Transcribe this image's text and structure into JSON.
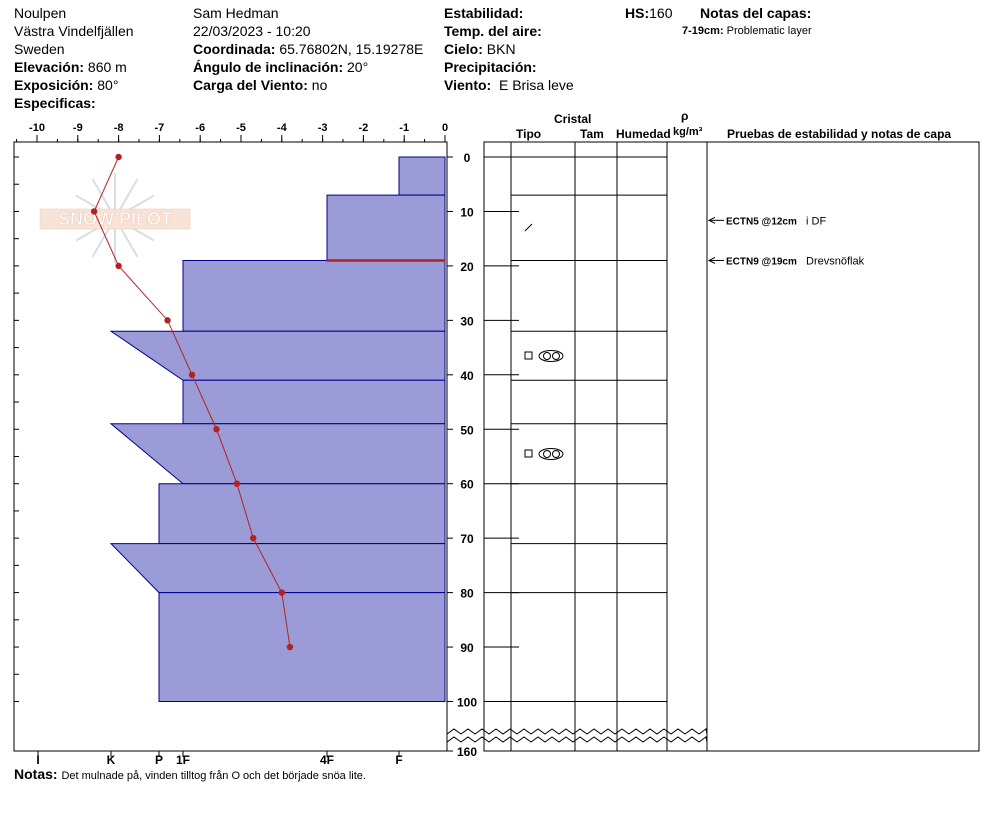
{
  "header": {
    "location": "Noulpen",
    "region": "Västra Vindelfjällen",
    "country": "Sweden",
    "elevation_label": "Elevación:",
    "elevation_value": "860 m",
    "exposure_label": "Exposición:",
    "exposure_value": "80°",
    "specifics_label": "Especificas:",
    "observer": "Sam Hedman",
    "datetime": "22/03/2023 - 10:20",
    "coord_label": "Coordinada:",
    "coord_value": "65.76802N, 15.19278E",
    "slope_label": "Ángulo de inclinación:",
    "slope_value": "20°",
    "wind_load_label": "Carga del Viento:",
    "wind_load_value": "no",
    "stability_label": "Estabilidad:",
    "air_temp_label": "Temp. del aire:",
    "sky_label": "Cielo:",
    "sky_value": "BKN",
    "precip_label": "Precipitación:",
    "wind_label": "Viento:",
    "wind_value": "E  Brisa leve",
    "hs_label": "HS:",
    "hs_value": "160",
    "layer_notes_label": "Notas del capas:",
    "layer_note_range": "7-19cm:",
    "layer_note_text": "Problematic layer"
  },
  "table": {
    "crystal": "Cristal",
    "type": "Tipo",
    "size": "Tam",
    "moisture": "Humedad",
    "rho": "ρ",
    "density_unit": "kg/m³",
    "tests_header": "Pruebas de estabilidad y notas de capa"
  },
  "notes": {
    "label": "Notas:",
    "text": "Det mulnade på, vinden tilltog från O och det började snöa lite."
  },
  "logo_text": "SNOW PILOT",
  "colors": {
    "layer_fill": "#9b9bd8",
    "layer_stroke": "#00008b",
    "temp_line": "#b22222",
    "weak_layer": "#b22222"
  },
  "chart_data": {
    "type": "line",
    "x_axis_top": {
      "label_ticks": [
        "-10",
        "-9",
        "-8",
        "-7",
        "-6",
        "-5",
        "-4",
        "-3",
        "-2",
        "-1",
        "0"
      ],
      "range": [
        -10.5,
        0
      ]
    },
    "hardness_ticks": [
      "I",
      "K",
      "P",
      "1F",
      "4F",
      "F"
    ],
    "depth_ticks": [
      "0",
      "10",
      "20",
      "30",
      "40",
      "50",
      "60",
      "70",
      "80",
      "90",
      "100",
      "160"
    ],
    "temperature_profile": {
      "depth_cm": [
        0,
        10,
        20,
        30,
        40,
        50,
        60,
        70,
        80,
        90
      ],
      "temp_c": [
        -8,
        -8.6,
        -8,
        -6.8,
        -6.2,
        -5.6,
        -5.1,
        -4.7,
        -4.0,
        -3.8
      ]
    },
    "layers": [
      {
        "top": 0,
        "bottom": 7,
        "hardness_top": "F",
        "hardness_bottom": "F"
      },
      {
        "top": 7,
        "bottom": 19,
        "hardness_top": "4F",
        "hardness_bottom": "4F"
      },
      {
        "top": 19,
        "bottom": 32,
        "hardness_top": "1F",
        "hardness_bottom": "1F"
      },
      {
        "top": 32,
        "bottom": 41,
        "hardness_top": "K",
        "hardness_bottom": "1F"
      },
      {
        "top": 41,
        "bottom": 49,
        "hardness_top": "1F",
        "hardness_bottom": "1F"
      },
      {
        "top": 49,
        "bottom": 60,
        "hardness_top": "K",
        "hardness_bottom": "1F"
      },
      {
        "top": 60,
        "bottom": 71,
        "hardness_top": "P",
        "hardness_bottom": "P"
      },
      {
        "top": 71,
        "bottom": 80,
        "hardness_top": "K",
        "hardness_bottom": "P"
      },
      {
        "top": 80,
        "bottom": 100,
        "hardness_top": "P",
        "hardness_bottom": "P"
      }
    ],
    "weak_layer_depth": 19,
    "stability_tests": [
      {
        "depth": 12,
        "label": "ECTN5 @12cm",
        "note": "i DF"
      },
      {
        "depth": 19,
        "label": "ECTN9 @19cm",
        "note": "Drevsnöflak"
      }
    ]
  }
}
